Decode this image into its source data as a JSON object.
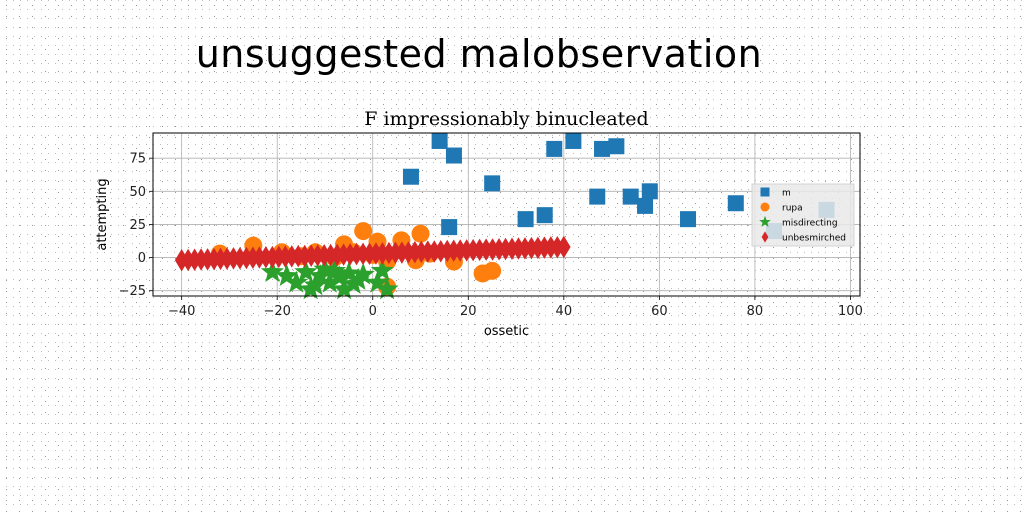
{
  "figure": {
    "suptitle": "unsuggested malobservation"
  },
  "chart_data": {
    "type": "scatter",
    "title": "F impressionably binucleated",
    "xlabel": "ossetic",
    "ylabel": "attempting",
    "xlim": [
      -46,
      102
    ],
    "ylim": [
      -29,
      94
    ],
    "xticks": [
      -40,
      -20,
      0,
      20,
      40,
      60,
      80,
      100
    ],
    "yticks": [
      -25,
      0,
      25,
      50,
      75
    ],
    "grid": true,
    "legend_position": "right",
    "series": [
      {
        "name": "m",
        "marker": "square",
        "color": "#1f77b4",
        "points": [
          [
            14,
            88
          ],
          [
            17,
            77
          ],
          [
            8,
            61
          ],
          [
            25,
            56
          ],
          [
            16,
            23
          ],
          [
            32,
            29
          ],
          [
            36,
            32
          ],
          [
            38,
            82
          ],
          [
            42,
            88
          ],
          [
            48,
            82
          ],
          [
            51,
            84
          ],
          [
            47,
            46
          ],
          [
            54,
            46
          ],
          [
            57,
            39
          ],
          [
            58,
            50
          ],
          [
            66,
            29
          ],
          [
            76,
            41
          ],
          [
            84,
            20
          ],
          [
            95,
            36
          ]
        ]
      },
      {
        "name": "rupa",
        "marker": "circle",
        "color": "#ff7f0e",
        "points": [
          [
            -32,
            3
          ],
          [
            -25,
            9
          ],
          [
            -19,
            4
          ],
          [
            -15,
            1
          ],
          [
            -12,
            4
          ],
          [
            -8,
            0
          ],
          [
            -6,
            10
          ],
          [
            -4,
            4
          ],
          [
            -2,
            20
          ],
          [
            1,
            12
          ],
          [
            3,
            -3
          ],
          [
            6,
            13
          ],
          [
            9,
            -2
          ],
          [
            10,
            18
          ],
          [
            12,
            3
          ],
          [
            17,
            -3
          ],
          [
            23,
            -12
          ],
          [
            25,
            -10
          ],
          [
            3,
            -22
          ],
          [
            0,
            2
          ]
        ]
      },
      {
        "name": "misdirecting",
        "marker": "star",
        "color": "#2ca02c",
        "points": [
          [
            -21,
            -11
          ],
          [
            -18,
            -14
          ],
          [
            -16,
            -19
          ],
          [
            -14,
            -11
          ],
          [
            -13,
            -24
          ],
          [
            -11,
            -14
          ],
          [
            -9,
            -19
          ],
          [
            -8,
            -10
          ],
          [
            -7,
            -15
          ],
          [
            -6,
            -24
          ],
          [
            -5,
            -12
          ],
          [
            -4,
            -20
          ],
          [
            -3,
            -17
          ],
          [
            -2,
            -13
          ],
          [
            1,
            -19
          ],
          [
            2,
            -10
          ],
          [
            3,
            -24
          ],
          [
            -10,
            -9
          ],
          [
            -12,
            -21
          ]
        ]
      },
      {
        "name": "unbesmirched",
        "marker": "diamond",
        "color": "#d62728",
        "line_from": [
          -40,
          -2
        ],
        "line_to": [
          40,
          8
        ],
        "count": 60
      }
    ]
  }
}
